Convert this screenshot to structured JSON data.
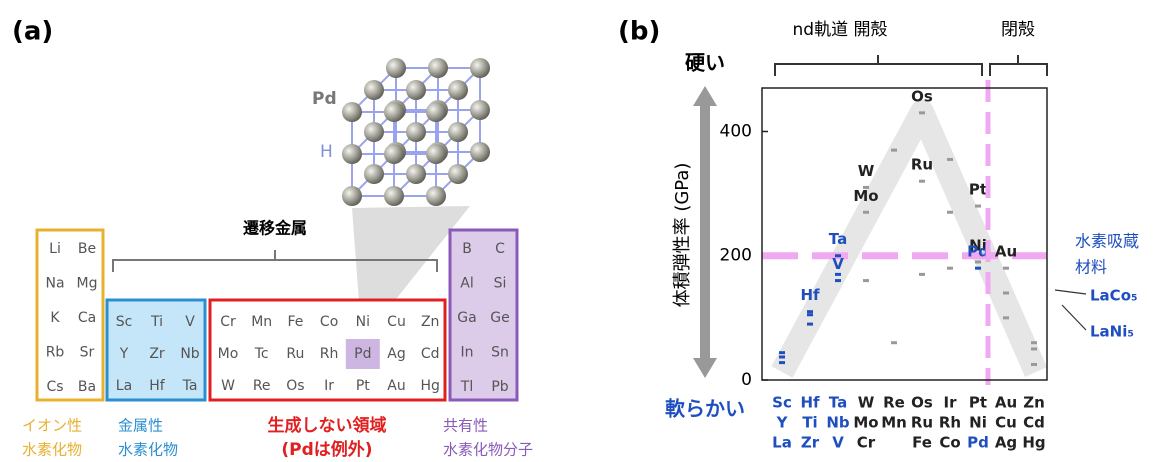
{
  "panel_a": {
    "label": "(a)",
    "crystal_labels": [
      "Pd",
      "H"
    ],
    "bracket_label": "遷移金属",
    "groups": [
      {
        "color": "#e8b030",
        "fill": "#ffffff",
        "elements": [
          [
            "Li",
            "Be"
          ],
          [
            "Na",
            "Mg"
          ],
          [
            "K",
            "Ca"
          ],
          [
            "Rb",
            "Sr"
          ],
          [
            "Cs",
            "Ba"
          ]
        ],
        "caption": [
          "イオン性",
          "水素化物"
        ]
      },
      {
        "color": "#2a8fd0",
        "fill": "#c4e6f8",
        "elements": [
          [
            "Sc",
            "Ti",
            "V"
          ],
          [
            "Y",
            "Zr",
            "Nb"
          ],
          [
            "La",
            "Hf",
            "Ta"
          ]
        ],
        "caption": [
          "金属性",
          "水素化物"
        ]
      },
      {
        "color": "#e02020",
        "fill": "#ffffff",
        "elements": [
          [
            "Cr",
            "Mn",
            "Fe",
            "Co",
            "Ni",
            "Cu",
            "Zn"
          ],
          [
            "Mo",
            "Tc",
            "Ru",
            "Rh",
            "Pd",
            "Ag",
            "Cd"
          ],
          [
            "W",
            "Re",
            "Os",
            "Ir",
            "Pt",
            "Au",
            "Hg"
          ]
        ],
        "caption": [
          "生成しない領域",
          "(Pdは例外)"
        ]
      },
      {
        "color": "#8a5ab8",
        "fill": "#dccbe9",
        "elements": [
          [
            "B",
            "C"
          ],
          [
            "Al",
            "Si"
          ],
          [
            "Ga",
            "Ge"
          ],
          [
            "In",
            "Sn"
          ],
          [
            "Tl",
            "Pb"
          ]
        ],
        "caption": [
          "共有性",
          "水素化物分子"
        ]
      }
    ]
  },
  "chart_data": {
    "type": "strip",
    "panel_label": "(b)",
    "ylabel": "体積弾性率 (GPa)",
    "top_labels": [
      "nd軌道 開殻",
      "閉殻"
    ],
    "hard_label": "硬い",
    "soft_label": "軟らかい",
    "annotation": [
      "水素吸蔵",
      "材料"
    ],
    "compound_labels": [
      "LaCo₅",
      "LaNi₅"
    ],
    "ylim": [
      0,
      470
    ],
    "yticks": [
      0,
      200,
      400
    ],
    "hline": 200,
    "series": [
      {
        "labels": [
          "Sc",
          "Hf",
          "Ta",
          "W",
          "Re",
          "Os",
          "Ir",
          "Pt",
          "Au",
          "Zn"
        ],
        "values": [
          44,
          110,
          200,
          310,
          370,
          430,
          355,
          280,
          180,
          60
        ],
        "point_labels": [
          null,
          "Hf",
          "Ta",
          "W",
          null,
          "Os",
          null,
          "Pt",
          "Au",
          null
        ],
        "colors": [
          "#1f4fbf",
          "#1f4fbf",
          "#1f4fbf",
          "#222222",
          "#222222",
          "#222222",
          "#222222",
          "#222222",
          "#222222",
          "#222222"
        ]
      },
      {
        "labels": [
          "Y",
          "Ti",
          "Nb",
          "Mo",
          "Mn",
          "Ru",
          "Rh",
          "Ni",
          "Cu",
          "Cd"
        ],
        "values": [
          37,
          105,
          170,
          270,
          60,
          320,
          270,
          190,
          140,
          50
        ],
        "point_labels": [
          null,
          null,
          null,
          "Mo",
          null,
          "Ru",
          null,
          "Ni",
          null,
          null
        ],
        "colors": [
          "#1f4fbf",
          "#1f4fbf",
          "#1f4fbf",
          "#222222",
          "#222222",
          "#222222",
          "#222222",
          "#222222",
          "#222222",
          "#222222"
        ]
      },
      {
        "labels": [
          "La",
          "Zr",
          "V",
          "Cr",
          null,
          "Fe",
          "Co",
          "Pd",
          "Ag",
          "Hg"
        ],
        "values": [
          28,
          90,
          160,
          160,
          null,
          170,
          180,
          180,
          100,
          25
        ],
        "point_labels": [
          null,
          null,
          "V",
          null,
          null,
          null,
          null,
          "Pd",
          null,
          null
        ],
        "colors": [
          "#1f4fbf",
          "#1f4fbf",
          "#1f4fbf",
          "#222222",
          "#222222",
          "#222222",
          "#222222",
          "#1f4fbf",
          "#222222",
          "#222222"
        ]
      }
    ]
  }
}
